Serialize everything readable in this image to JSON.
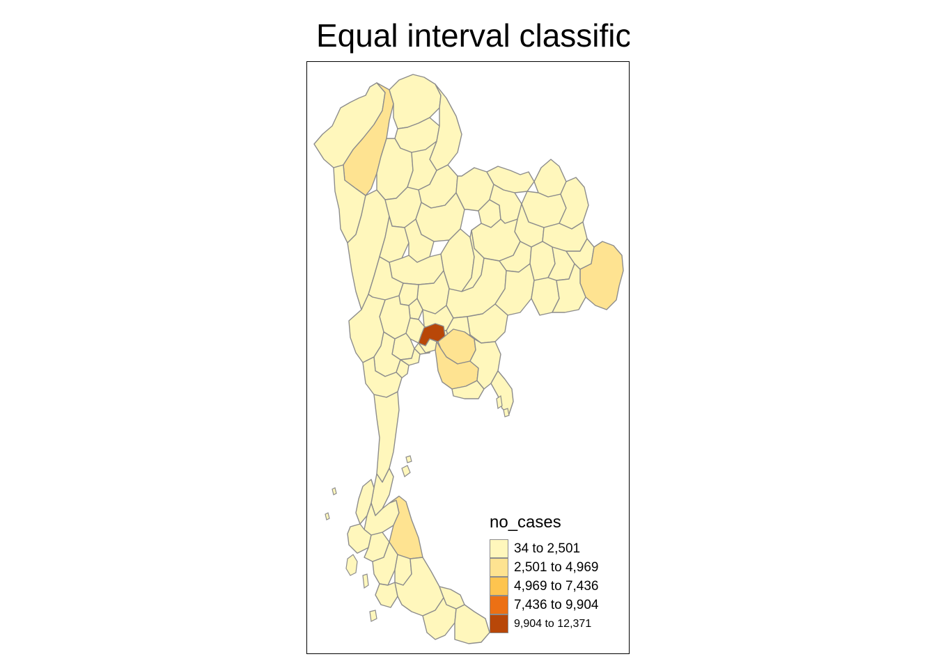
{
  "title": "Equal interval classification",
  "legend": {
    "title": "no_cases",
    "classes": [
      {
        "label": "34 to 2,501",
        "color": "#FFF7BC"
      },
      {
        "label": "2,501 to 4,969",
        "color": "#FEE391"
      },
      {
        "label": "4,969 to 7,436",
        "color": "#FEC44F"
      },
      {
        "label": "7,436 to 9,904",
        "color": "#EC7014"
      },
      {
        "label": "9,904 to 12,371",
        "color": "#B84708"
      }
    ]
  },
  "map": {
    "variable": "no_cases",
    "classification": "equal interval",
    "frame": true
  }
}
